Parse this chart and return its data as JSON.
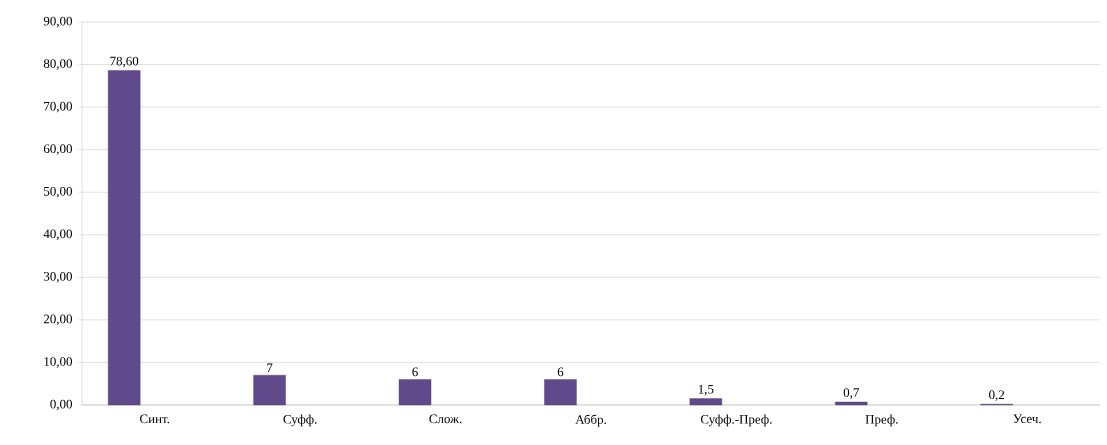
{
  "chart_data": {
    "type": "bar",
    "categories": [
      "Синт.",
      "Суфф.",
      "Слож.",
      "Аббр.",
      "Суфф.-Преф.",
      "Преф.",
      "Усеч."
    ],
    "values": [
      78.6,
      7,
      6,
      6,
      1.5,
      0.7,
      0.2
    ],
    "value_labels": [
      "78,60",
      "7",
      "6",
      "6",
      "1,5",
      "0,7",
      "0,2"
    ],
    "color": "#604a8b",
    "ylim": [
      0,
      90
    ],
    "yticks": [
      {
        "value": 0,
        "label": "0,00"
      },
      {
        "value": 10,
        "label": "10,00"
      },
      {
        "value": 20,
        "label": "20,00"
      },
      {
        "value": 30,
        "label": "30,00"
      },
      {
        "value": 40,
        "label": "40,00"
      },
      {
        "value": 50,
        "label": "50,00"
      },
      {
        "value": 60,
        "label": "60,00"
      },
      {
        "value": 70,
        "label": "70,00"
      },
      {
        "value": 80,
        "label": "80,00"
      },
      {
        "value": 90,
        "label": "90,00"
      }
    ],
    "grid": "y"
  }
}
